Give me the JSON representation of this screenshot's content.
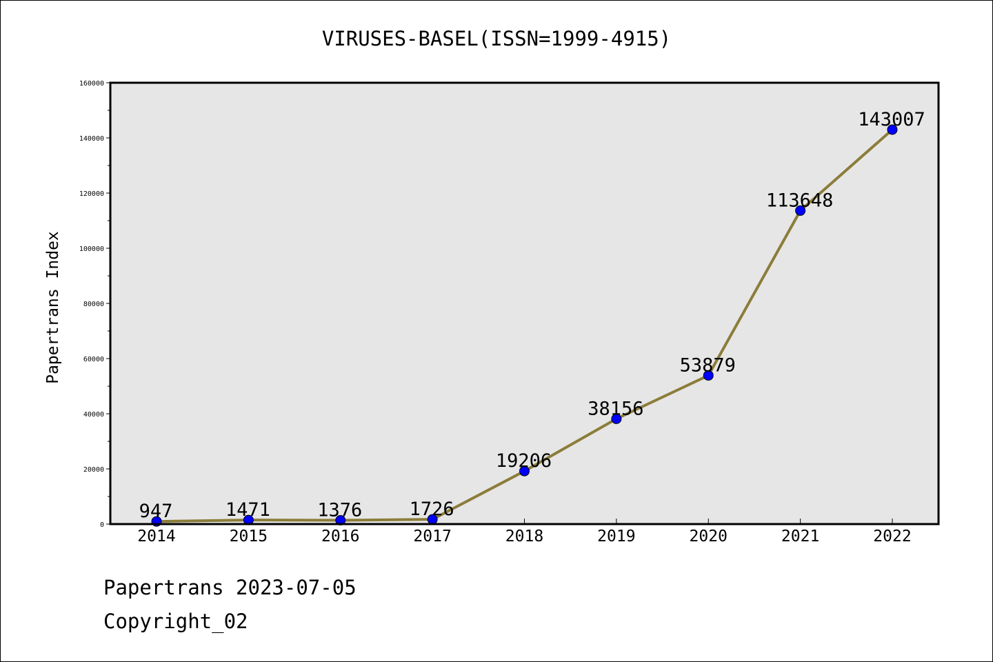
{
  "chart_data": {
    "type": "line",
    "title": "VIRUSES-BASEL(ISSN=1999-4915)",
    "xlabel": "",
    "ylabel": "Papertrans Index",
    "categories": [
      "2014",
      "2015",
      "2016",
      "2017",
      "2018",
      "2019",
      "2020",
      "2021",
      "2022"
    ],
    "series": [
      {
        "values": [
          947,
          1471,
          1376,
          1726,
          19206,
          38156,
          53879,
          113648,
          143007
        ]
      }
    ],
    "value_labels": [
      "947",
      "1471",
      "1376",
      "1726",
      "19206",
      "38156",
      "53879",
      "113648",
      "143007"
    ],
    "ylim": [
      0,
      160000
    ],
    "yticks": [
      0,
      20000,
      40000,
      60000,
      80000,
      100000,
      120000,
      140000,
      160000
    ],
    "ytick_labels": [
      "0",
      "20000",
      "40000",
      "60000",
      "80000",
      "100000",
      "120000",
      "140000",
      "160000"
    ],
    "grid": false,
    "colors": {
      "line": "#8b7d3a",
      "marker": "#0000ff",
      "plot_bg": "#e6e6e6"
    }
  },
  "footer": {
    "line1": "Papertrans 2023-07-05",
    "line2": "Copyright_02"
  }
}
